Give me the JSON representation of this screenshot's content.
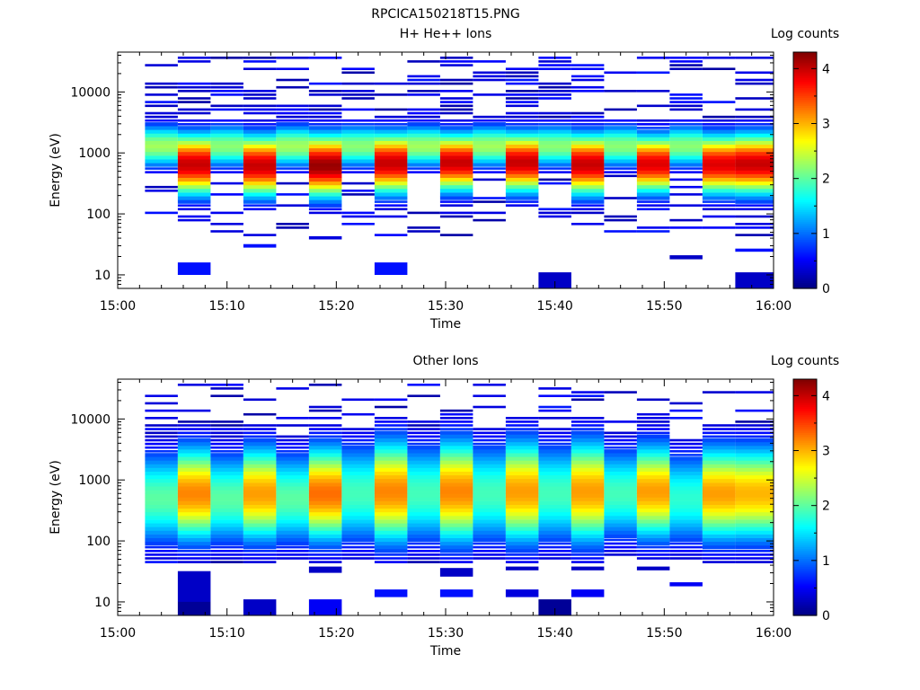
{
  "figure": {
    "title": "RPCICA150218T15.PNG"
  },
  "colormap": [
    "#00007f",
    "#0000ff",
    "#007fff",
    "#00ffff",
    "#7fff7f",
    "#ffff00",
    "#ff7f00",
    "#ff0000",
    "#7f0000"
  ],
  "chart_data": [
    {
      "type": "heatmap",
      "title": "H+ He++ Ions",
      "xlabel": "Time",
      "ylabel": "Energy (eV)",
      "x_ticks": [
        "15:00",
        "15:10",
        "15:20",
        "15:30",
        "15:40",
        "15:50",
        "16:00"
      ],
      "y_ticks": [
        "10",
        "100",
        "1000",
        "10000"
      ],
      "y_scale": "log",
      "ylim": [
        6,
        45000
      ],
      "x_range_min": [
        0,
        60
      ],
      "colorbar": {
        "label": "Log counts",
        "ticks": [
          "0",
          "1",
          "2",
          "3",
          "4"
        ],
        "range": [
          0,
          4.3
        ]
      },
      "time_bins_min": [
        [
          2.5,
          5.5
        ],
        [
          5.5,
          8.5
        ],
        [
          8.5,
          11.5
        ],
        [
          11.5,
          14.5
        ],
        [
          14.5,
          17.5
        ],
        [
          17.5,
          20.5
        ],
        [
          20.5,
          23.5
        ],
        [
          23.5,
          26.5
        ],
        [
          26.5,
          29.5
        ],
        [
          29.5,
          32.5
        ],
        [
          32.5,
          35.5
        ],
        [
          35.5,
          38.5
        ],
        [
          38.5,
          41.5
        ],
        [
          41.5,
          44.5
        ],
        [
          44.5,
          47.5
        ],
        [
          47.5,
          50.5
        ],
        [
          50.5,
          53.5
        ],
        [
          53.5,
          56.5
        ],
        [
          56.5,
          60
        ]
      ],
      "profiles": [
        {
          "kind": "weak",
          "center_eV": 1300,
          "peak": 2.3,
          "width_dec": 0.25
        },
        {
          "kind": "strong",
          "center_eV": 650,
          "peak": 4.0,
          "width_dec": 0.35
        },
        {
          "kind": "weak",
          "center_eV": 1300,
          "peak": 2.2,
          "width_dec": 0.25
        },
        {
          "kind": "strong",
          "center_eV": 620,
          "peak": 4.0,
          "width_dec": 0.35
        },
        {
          "kind": "weak",
          "center_eV": 1300,
          "peak": 2.3,
          "width_dec": 0.25
        },
        {
          "kind": "strong",
          "center_eV": 620,
          "peak": 4.2,
          "width_dec": 0.36
        },
        {
          "kind": "weak",
          "center_eV": 1300,
          "peak": 2.2,
          "width_dec": 0.25
        },
        {
          "kind": "strong",
          "center_eV": 680,
          "peak": 4.0,
          "width_dec": 0.35
        },
        {
          "kind": "weak",
          "center_eV": 1300,
          "peak": 2.3,
          "width_dec": 0.25
        },
        {
          "kind": "strong",
          "center_eV": 700,
          "peak": 4.0,
          "width_dec": 0.33
        },
        {
          "kind": "weak",
          "center_eV": 1300,
          "peak": 2.3,
          "width_dec": 0.25
        },
        {
          "kind": "strong",
          "center_eV": 700,
          "peak": 4.0,
          "width_dec": 0.34
        },
        {
          "kind": "weak",
          "center_eV": 1300,
          "peak": 2.2,
          "width_dec": 0.25
        },
        {
          "kind": "strong",
          "center_eV": 650,
          "peak": 4.0,
          "width_dec": 0.35
        },
        {
          "kind": "weak",
          "center_eV": 1300,
          "peak": 2.2,
          "width_dec": 0.25
        },
        {
          "kind": "strong",
          "center_eV": 660,
          "peak": 3.9,
          "width_dec": 0.33
        },
        {
          "kind": "weak",
          "center_eV": 1300,
          "peak": 2.2,
          "width_dec": 0.25
        },
        {
          "kind": "strong",
          "center_eV": 650,
          "peak": 3.9,
          "width_dec": 0.34
        },
        {
          "kind": "strong",
          "center_eV": 660,
          "peak": 4.0,
          "width_dec": 0.35
        }
      ],
      "low_energy_blocks": [
        {
          "bin": 1,
          "e_low": 10,
          "e_high": 16,
          "value": 0.6
        },
        {
          "bin": 7,
          "e_low": 10,
          "e_high": 16,
          "value": 0.6
        },
        {
          "bin": 12,
          "e_low": 6,
          "e_high": 11,
          "value": 0.3
        },
        {
          "bin": 5,
          "e_low": 38,
          "e_high": 43,
          "value": 0.4
        },
        {
          "bin": 3,
          "e_low": 28,
          "e_high": 32,
          "value": 0.6
        },
        {
          "bin": 16,
          "e_low": 18,
          "e_high": 21,
          "value": 0.3
        },
        {
          "bin": 18,
          "e_low": 6,
          "e_high": 11,
          "value": 0.3
        },
        {
          "bin": 18,
          "e_low": 24,
          "e_high": 27,
          "value": 0.6
        }
      ]
    },
    {
      "type": "heatmap",
      "title": "Other Ions",
      "xlabel": "Time",
      "ylabel": "Energy (eV)",
      "x_ticks": [
        "15:00",
        "15:10",
        "15:20",
        "15:30",
        "15:40",
        "15:50",
        "16:00"
      ],
      "y_ticks": [
        "10",
        "100",
        "1000",
        "10000"
      ],
      "y_scale": "log",
      "ylim": [
        6,
        45000
      ],
      "x_range_min": [
        0,
        60
      ],
      "colorbar": {
        "label": "Log counts",
        "ticks": [
          "0",
          "1",
          "2",
          "3",
          "4"
        ],
        "range": [
          0,
          4.3
        ]
      },
      "time_bins_min": [
        [
          2.5,
          5.5
        ],
        [
          5.5,
          8.5
        ],
        [
          8.5,
          11.5
        ],
        [
          11.5,
          14.5
        ],
        [
          14.5,
          17.5
        ],
        [
          17.5,
          20.5
        ],
        [
          20.5,
          23.5
        ],
        [
          23.5,
          26.5
        ],
        [
          26.5,
          29.5
        ],
        [
          29.5,
          32.5
        ],
        [
          32.5,
          35.5
        ],
        [
          35.5,
          38.5
        ],
        [
          38.5,
          41.5
        ],
        [
          41.5,
          44.5
        ],
        [
          44.5,
          47.5
        ],
        [
          47.5,
          50.5
        ],
        [
          50.5,
          53.5
        ],
        [
          53.5,
          56.5
        ],
        [
          56.5,
          60
        ]
      ],
      "profiles": [
        {
          "kind": "weak",
          "center_eV": 500,
          "peak": 2.0,
          "width_dec": 0.55
        },
        {
          "kind": "strong",
          "center_eV": 600,
          "peak": 3.2,
          "width_dec": 0.55
        },
        {
          "kind": "weak",
          "center_eV": 500,
          "peak": 2.0,
          "width_dec": 0.55
        },
        {
          "kind": "strong",
          "center_eV": 600,
          "peak": 3.1,
          "width_dec": 0.55
        },
        {
          "kind": "weak",
          "center_eV": 500,
          "peak": 2.0,
          "width_dec": 0.55
        },
        {
          "kind": "strong",
          "center_eV": 600,
          "peak": 3.3,
          "width_dec": 0.55
        },
        {
          "kind": "weak",
          "center_eV": 600,
          "peak": 1.9,
          "width_dec": 0.6
        },
        {
          "kind": "strong",
          "center_eV": 650,
          "peak": 3.2,
          "width_dec": 0.6
        },
        {
          "kind": "weak",
          "center_eV": 600,
          "peak": 1.9,
          "width_dec": 0.6
        },
        {
          "kind": "strong",
          "center_eV": 650,
          "peak": 3.2,
          "width_dec": 0.6
        },
        {
          "kind": "weak",
          "center_eV": 600,
          "peak": 1.9,
          "width_dec": 0.6
        },
        {
          "kind": "strong",
          "center_eV": 650,
          "peak": 3.1,
          "width_dec": 0.6
        },
        {
          "kind": "weak",
          "center_eV": 600,
          "peak": 1.9,
          "width_dec": 0.6
        },
        {
          "kind": "strong",
          "center_eV": 650,
          "peak": 3.1,
          "width_dec": 0.6
        },
        {
          "kind": "weak",
          "center_eV": 600,
          "peak": 1.9,
          "width_dec": 0.55
        },
        {
          "kind": "strong",
          "center_eV": 650,
          "peak": 3.1,
          "width_dec": 0.55
        },
        {
          "kind": "weak",
          "center_eV": 500,
          "peak": 1.8,
          "width_dec": 0.55
        },
        {
          "kind": "strong",
          "center_eV": 600,
          "peak": 3.1,
          "width_dec": 0.55
        },
        {
          "kind": "strong",
          "center_eV": 600,
          "peak": 3.0,
          "width_dec": 0.55
        }
      ],
      "low_energy_blocks": [
        {
          "bin": 1,
          "e_low": 10,
          "e_high": 32,
          "value": 0.3
        },
        {
          "bin": 1,
          "e_low": 6,
          "e_high": 10,
          "value": 0.1
        },
        {
          "bin": 3,
          "e_low": 6,
          "e_high": 11,
          "value": 0.3
        },
        {
          "bin": 5,
          "e_low": 6,
          "e_high": 11,
          "value": 0.5
        },
        {
          "bin": 5,
          "e_low": 30,
          "e_high": 38,
          "value": 0.3
        },
        {
          "bin": 7,
          "e_low": 12,
          "e_high": 16,
          "value": 0.6
        },
        {
          "bin": 9,
          "e_low": 12,
          "e_high": 16,
          "value": 0.6
        },
        {
          "bin": 9,
          "e_low": 26,
          "e_high": 36,
          "value": 0.3
        },
        {
          "bin": 11,
          "e_low": 12,
          "e_high": 16,
          "value": 0.4
        },
        {
          "bin": 11,
          "e_low": 33,
          "e_high": 38,
          "value": 0.3
        },
        {
          "bin": 12,
          "e_low": 6,
          "e_high": 11,
          "value": 0.1
        },
        {
          "bin": 13,
          "e_low": 12,
          "e_high": 16,
          "value": 0.5
        },
        {
          "bin": 13,
          "e_low": 33,
          "e_high": 38,
          "value": 0.3
        },
        {
          "bin": 15,
          "e_low": 33,
          "e_high": 38,
          "value": 0.3
        },
        {
          "bin": 16,
          "e_low": 18,
          "e_high": 21,
          "value": 0.5
        }
      ]
    }
  ]
}
